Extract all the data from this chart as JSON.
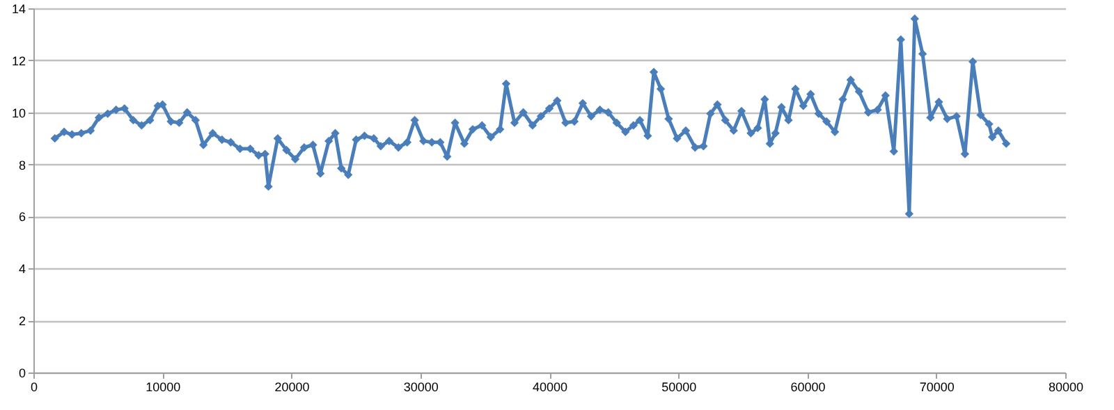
{
  "chart_data": {
    "type": "line",
    "marker": "diamond",
    "line_style": "solid",
    "grid": "y",
    "xlim": [
      0,
      80000
    ],
    "xticks": [
      0,
      10000,
      20000,
      30000,
      40000,
      50000,
      60000,
      70000,
      80000
    ],
    "ylim": [
      0,
      14
    ],
    "yticks": [
      0,
      2,
      4,
      6,
      8,
      10,
      12,
      14
    ],
    "x": [
      1660,
      2380,
      2990,
      3710,
      4430,
      5080,
      5760,
      6410,
      7060,
      7740,
      8390,
      9040,
      9650,
      10010,
      10660,
      11300,
      11920,
      12570,
      13180,
      13900,
      14620,
      15300,
      16020,
      16810,
      17460,
      17960,
      18220,
      18940,
      19620,
      20300,
      20990,
      21670,
      22250,
      22900,
      23400,
      23870,
      24410,
      25020,
      25670,
      26390,
      26930,
      27580,
      28300,
      28980,
      29560,
      30240,
      30890,
      31540,
      32080,
      32690,
      33410,
      34060,
      34780,
      35460,
      36180,
      36650,
      37300,
      37980,
      38700,
      39350,
      40000,
      40610,
      41260,
      41940,
      42590,
      43240,
      43920,
      44570,
      45220,
      45900,
      46520,
      47020,
      47630,
      48100,
      48640,
      49250,
      49900,
      50580,
      51300,
      51950,
      52490,
      53030,
      53640,
      54290,
      54900,
      55620,
      56160,
      56700,
      57100,
      57530,
      58000,
      58540,
      59080,
      59690,
      60260,
      60880,
      61490,
      62140,
      62750,
      63360,
      64010,
      64730,
      65450,
      66060,
      66710,
      67250,
      67900,
      68330,
      68940,
      69550,
      70200,
      70850,
      71570,
      72220,
      72830,
      73440,
      74090,
      74340,
      74810,
      75420
    ],
    "series": [
      {
        "color": "#4a7ebb",
        "values": [
          9.0,
          9.25,
          9.15,
          9.2,
          9.3,
          9.8,
          9.95,
          10.1,
          10.15,
          9.7,
          9.5,
          9.7,
          10.25,
          10.3,
          9.65,
          9.6,
          10.0,
          9.7,
          8.75,
          9.2,
          8.95,
          8.85,
          8.6,
          8.6,
          8.35,
          8.4,
          7.15,
          9.0,
          8.55,
          8.2,
          8.65,
          8.75,
          7.65,
          8.9,
          9.2,
          7.85,
          7.6,
          8.95,
          9.1,
          9.0,
          8.7,
          8.9,
          8.65,
          8.85,
          9.7,
          8.9,
          8.85,
          8.85,
          8.3,
          9.6,
          8.8,
          9.35,
          9.5,
          9.05,
          9.35,
          11.1,
          9.6,
          10.0,
          9.5,
          9.85,
          10.15,
          10.45,
          9.6,
          9.65,
          10.35,
          9.85,
          10.1,
          10.0,
          9.6,
          9.25,
          9.5,
          9.7,
          9.1,
          11.55,
          10.9,
          9.75,
          9.0,
          9.3,
          8.65,
          8.7,
          9.95,
          10.3,
          9.7,
          9.3,
          10.05,
          9.2,
          9.4,
          10.5,
          8.8,
          9.2,
          10.2,
          9.7,
          10.9,
          10.25,
          10.7,
          9.95,
          9.65,
          9.25,
          10.5,
          11.25,
          10.8,
          10.0,
          10.1,
          10.65,
          8.5,
          12.8,
          6.1,
          13.6,
          12.25,
          9.8,
          10.4,
          9.75,
          9.85,
          8.4,
          11.95,
          9.9,
          9.55,
          9.05,
          9.3,
          8.8
        ]
      }
    ]
  }
}
